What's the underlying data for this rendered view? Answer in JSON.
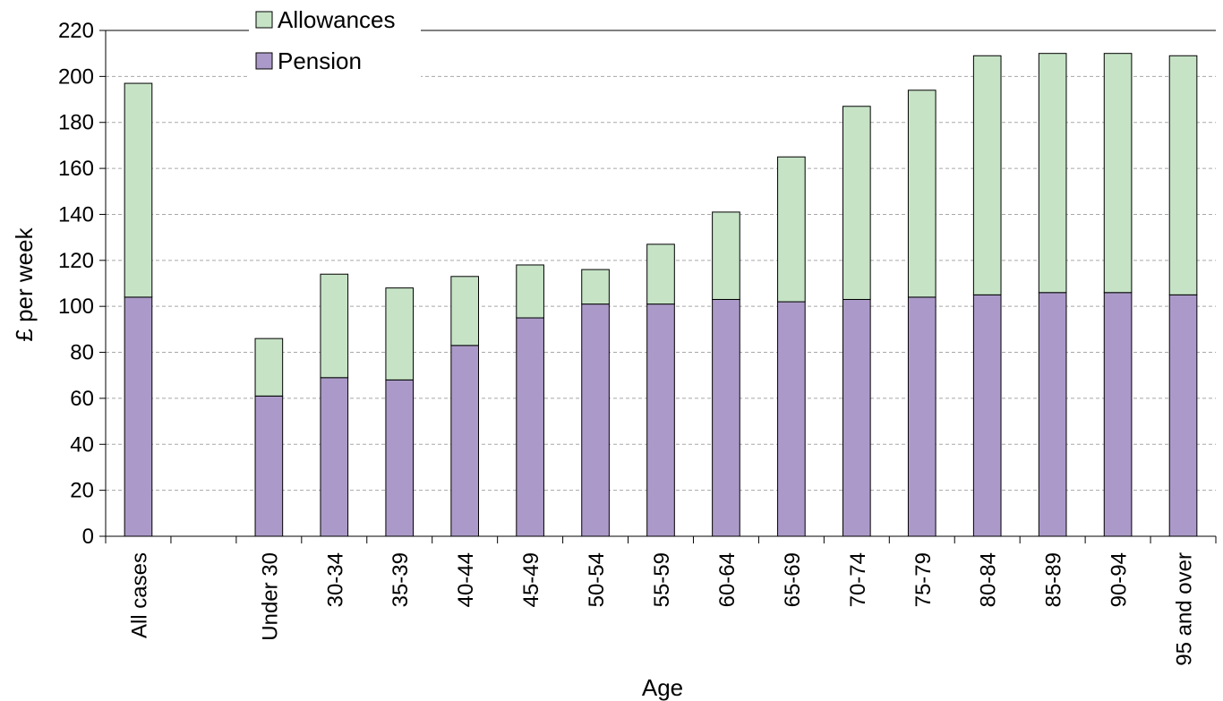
{
  "chart_data": {
    "type": "bar",
    "stacked": true,
    "title": "",
    "xlabel": "Age",
    "ylabel": "£ per week",
    "ylim": [
      0,
      220
    ],
    "ytick_step": 20,
    "grid": "horizontal dashed",
    "legend_position": "top-left",
    "categories": [
      "All cases",
      "",
      "Under 30",
      "30-34",
      "35-39",
      "40-44",
      "45-49",
      "50-54",
      "55-59",
      "60-64",
      "65-69",
      "70-74",
      "75-79",
      "80-84",
      "85-89",
      "90-94",
      "95 and over"
    ],
    "series": [
      {
        "name": "Pension",
        "color": "#ab9ac9",
        "values": [
          104,
          null,
          61,
          69,
          68,
          83,
          95,
          101,
          101,
          103,
          102,
          103,
          104,
          105,
          106,
          106,
          105
        ]
      },
      {
        "name": "Allowances",
        "color": "#c6e3c6",
        "values": [
          93,
          null,
          25,
          45,
          40,
          30,
          23,
          15,
          26,
          38,
          63,
          84,
          90,
          104,
          104,
          104,
          104
        ]
      }
    ]
  }
}
